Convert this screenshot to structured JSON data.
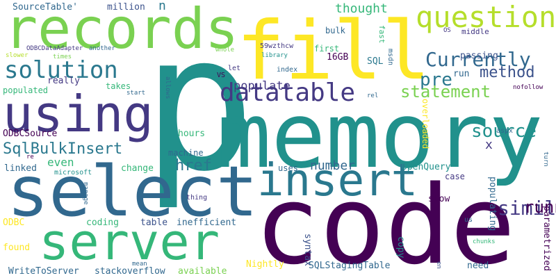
{
  "colors": {
    "background": "#ffffff",
    "dark_purple": "#440154",
    "indigo": "#443983",
    "slate_blue": "#31688e",
    "teal": "#21918c",
    "sea_green": "#35b779",
    "green": "#90d743",
    "yellow": "#fde725"
  },
  "words": {
    "w_p": "p",
    "w_memory": "memory",
    "w_code": "code",
    "w_fill": "fill",
    "w_select": "select",
    "w_records": "records",
    "w_using": "using",
    "w_server": "server",
    "w_insert": "insert",
    "w_question": "question",
    "w_datatable": "datatable",
    "w_solution": "solution",
    "w_currently": "Currently",
    "w_pre": "pre",
    "w_statement": "statement",
    "w_method": "method",
    "w_sqlbulkinsert": "SqlBulkInsert",
    "w_source": "source",
    "w_similar": "similar",
    "w_running": "running",
    "w_href": "href",
    "w_number": "number",
    "w_populate": "populate",
    "w_thought": "thought",
    "w_sourcetable": "SourceTable'",
    "w_million": "million",
    "w_n": "n",
    "w_bulk": "bulk",
    "w_middle": "middle",
    "w_fast": "fast",
    "w_os": "OS",
    "w_passing": "passing",
    "w_run": "run",
    "w_first": "first",
    "w_16gb": "16GB",
    "w_sql": "SQL",
    "w_msdn": "msdn",
    "w_59wzthcw": "59wzthcw",
    "w_library": "library",
    "w_index": "index",
    "w_let": "let",
    "w_whole": "whole",
    "w_vs": "VS",
    "w_rel": "rel",
    "w_nofollow": "nofollow",
    "w_odbcdataadapter": "ODBCDataAdapter",
    "w_another": "another",
    "w_slower": "slower",
    "w_times": "times",
    "w_really": "really",
    "w_takes": "takes",
    "w_start": "start",
    "w_allows": "allows",
    "w_populated": "populated",
    "w_odbcsource": "ODBCSource",
    "w_hours": "hours",
    "w_even": "even",
    "w_x": "x",
    "w_overloaded": "overloaded",
    "w_aspx": "aspx",
    "w_turn": "turn",
    "w_machine": "machine",
    "w_re": "re",
    "w_linked": "linked",
    "w_microsoft": "microsoft",
    "w_change": "change",
    "w_uses": "uses",
    "w_openquery": "OpenQuery",
    "w_case": "case",
    "w_manage": "manage",
    "w_thing": "thing",
    "w_slow": "slow",
    "w_populating": "populating",
    "w_parametrized": "parametrized",
    "w_odbc": "ODBC",
    "w_coding": "coding",
    "w_table": "table",
    "w_inefficient": "inefficient",
    "w_us": "us",
    "w_syntax": "syntax",
    "w_copy": "copy",
    "w_chunks": "chunks",
    "w_found": "found",
    "w_nightly": "Nightly",
    "w_mean": "mean",
    "w_writetoserver": "WriteToServer",
    "w_stackoverflow": "stackoverflow",
    "w_available": "available",
    "w_sqlstagingtable": "SQLStagingTable",
    "w_en": "en",
    "w_need": "need"
  }
}
